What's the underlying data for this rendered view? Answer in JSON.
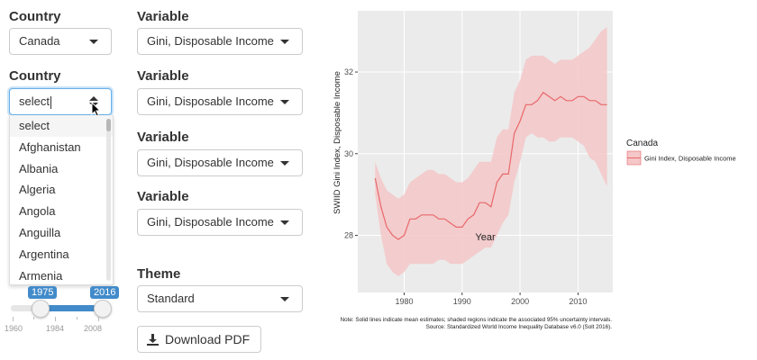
{
  "controls": {
    "country1": {
      "label": "Country",
      "value": "Canada"
    },
    "country2": {
      "label": "Country",
      "value": "select"
    },
    "variables": [
      {
        "label": "Variable",
        "value": "Gini, Disposable Income"
      },
      {
        "label": "Variable",
        "value": "Gini, Disposable Income"
      },
      {
        "label": "Variable",
        "value": "Gini, Disposable Income"
      },
      {
        "label": "Variable",
        "value": "Gini, Disposable Income"
      }
    ],
    "dropdown_options": [
      "select",
      "Afghanistan",
      "Albania",
      "Algeria",
      "Angola",
      "Anguilla",
      "Argentina",
      "Armenia"
    ],
    "slider": {
      "min_label": "1975",
      "max_label": "2016",
      "ticks": [
        "1960",
        "1984",
        "2008"
      ],
      "range_min": 1960,
      "range_max": 2016,
      "from": 1975,
      "to": 2016
    },
    "theme": {
      "label": "Theme",
      "value": "Standard"
    },
    "download_label": "Download PDF"
  },
  "colors": {
    "accent": "#428bca",
    "series": "#e8686a",
    "band": "#f4c7c8",
    "panel": "#ebebeb"
  },
  "chart_data": {
    "type": "line",
    "xlabel": "Year",
    "ylabel": "SWIID Gini Index, Disposable Income",
    "xlim": [
      1972,
      2016
    ],
    "ylim": [
      26.6,
      33.5
    ],
    "x_ticks": [
      1980,
      1990,
      2000,
      2010
    ],
    "y_ticks": [
      28,
      30,
      32
    ],
    "legend": {
      "title": "Canada",
      "entry": "Gini Index, Disposable Income",
      "position": "right"
    },
    "note_line1": "Note: Solid lines indicate mean estimates; shaded regions indicate the associated 95% uncertainty intervals.",
    "note_line2": "Source: Standardized World Income Inequality Database v6.0 (Solt 2016).",
    "series": [
      {
        "x": [
          1975,
          1976,
          1977,
          1978,
          1979,
          1980,
          1981,
          1982,
          1983,
          1984,
          1985,
          1986,
          1987,
          1988,
          1989,
          1990,
          1991,
          1992,
          1993,
          1994,
          1995,
          1996,
          1997,
          1998,
          1999,
          2000,
          2001,
          2002,
          2003,
          2004,
          2005,
          2006,
          2007,
          2008,
          2009,
          2010,
          2011,
          2012,
          2013,
          2014,
          2015
        ],
        "values": [
          29.4,
          28.7,
          28.2,
          28.0,
          27.9,
          28.0,
          28.4,
          28.4,
          28.5,
          28.5,
          28.5,
          28.4,
          28.4,
          28.3,
          28.2,
          28.2,
          28.4,
          28.5,
          28.8,
          28.8,
          28.7,
          29.3,
          29.5,
          29.5,
          30.5,
          30.8,
          31.2,
          31.2,
          31.3,
          31.5,
          31.4,
          31.3,
          31.4,
          31.3,
          31.3,
          31.4,
          31.4,
          31.3,
          31.3,
          31.2,
          31.2
        ],
        "lower": [
          29.0,
          28.0,
          27.3,
          27.1,
          27.0,
          27.1,
          27.3,
          27.3,
          27.3,
          27.3,
          27.3,
          27.4,
          27.4,
          27.3,
          27.3,
          27.3,
          27.4,
          27.5,
          27.6,
          27.7,
          27.7,
          28.0,
          28.3,
          28.5,
          29.3,
          29.8,
          30.4,
          30.5,
          30.4,
          30.4,
          30.3,
          30.3,
          30.4,
          30.4,
          30.4,
          30.3,
          30.2,
          29.9,
          29.8,
          29.5,
          29.2
        ],
        "upper": [
          29.8,
          29.4,
          29.1,
          29.0,
          28.9,
          29.0,
          29.3,
          29.4,
          29.5,
          29.6,
          29.6,
          29.5,
          29.5,
          29.4,
          29.3,
          29.3,
          29.4,
          29.6,
          29.8,
          29.8,
          29.8,
          30.4,
          30.6,
          30.6,
          31.5,
          31.8,
          32.3,
          32.4,
          32.4,
          32.4,
          32.3,
          32.2,
          32.3,
          32.3,
          32.3,
          32.4,
          32.5,
          32.6,
          32.8,
          33.0,
          33.1
        ]
      }
    ]
  }
}
